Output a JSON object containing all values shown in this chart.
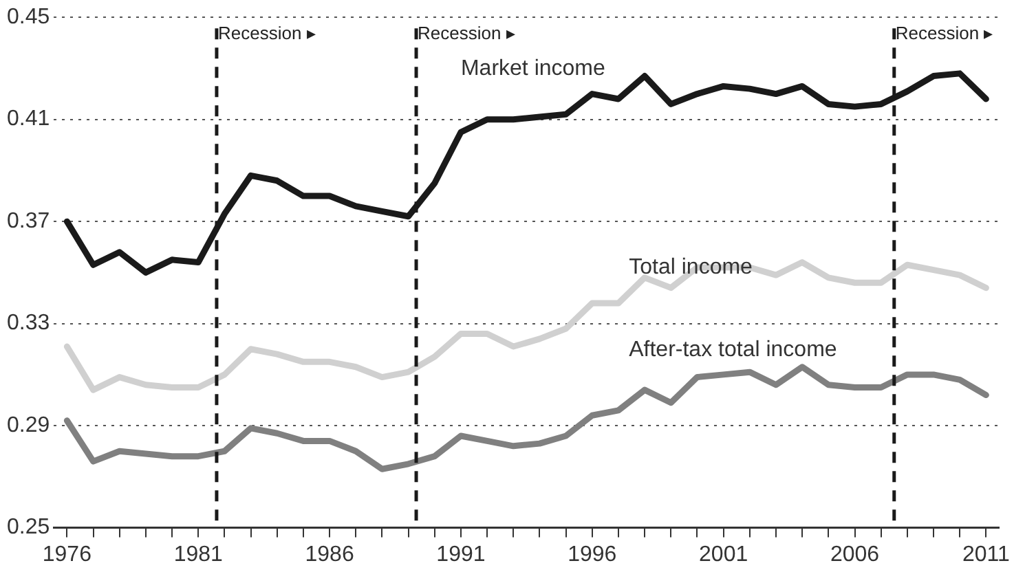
{
  "chart_data": {
    "type": "line",
    "x": [
      1976,
      1977,
      1978,
      1979,
      1980,
      1981,
      1982,
      1983,
      1984,
      1985,
      1986,
      1987,
      1988,
      1989,
      1990,
      1991,
      1992,
      1993,
      1994,
      1995,
      1996,
      1997,
      1998,
      1999,
      2000,
      2001,
      2002,
      2003,
      2004,
      2005,
      2006,
      2007,
      2008,
      2009,
      2010,
      2011
    ],
    "series": [
      {
        "name": "Market income",
        "color": "#1a1a1a",
        "values": [
          0.37,
          0.353,
          0.358,
          0.35,
          0.355,
          0.354,
          0.373,
          0.388,
          0.386,
          0.38,
          0.38,
          0.376,
          0.374,
          0.372,
          0.385,
          0.405,
          0.41,
          0.41,
          0.411,
          0.412,
          0.42,
          0.418,
          0.427,
          0.416,
          0.42,
          0.423,
          0.422,
          0.42,
          0.423,
          0.416,
          0.415,
          0.416,
          0.421,
          0.427,
          0.428,
          0.418
        ]
      },
      {
        "name": "Total income",
        "color": "#d0d0d0",
        "values": [
          0.321,
          0.304,
          0.309,
          0.306,
          0.305,
          0.305,
          0.31,
          0.32,
          0.318,
          0.315,
          0.315,
          0.313,
          0.309,
          0.311,
          0.317,
          0.326,
          0.326,
          0.321,
          0.324,
          0.328,
          0.338,
          0.338,
          0.348,
          0.344,
          0.352,
          0.352,
          0.352,
          0.349,
          0.354,
          0.348,
          0.346,
          0.346,
          0.353,
          0.351,
          0.349,
          0.344
        ]
      },
      {
        "name": "After-tax total income",
        "color": "#808080",
        "values": [
          0.292,
          0.276,
          0.28,
          0.279,
          0.278,
          0.278,
          0.28,
          0.289,
          0.287,
          0.284,
          0.284,
          0.28,
          0.273,
          0.275,
          0.278,
          0.286,
          0.284,
          0.282,
          0.283,
          0.286,
          0.294,
          0.296,
          0.304,
          0.299,
          0.309,
          0.31,
          0.311,
          0.306,
          0.313,
          0.306,
          0.305,
          0.305,
          0.31,
          0.31,
          0.308,
          0.302
        ]
      }
    ],
    "xlim": [
      1975.5,
      2011.5
    ],
    "xticks": [
      1976,
      {
        "value": 1977,
        "label": null
      },
      {
        "value": 1978,
        "label": null
      },
      {
        "value": 1979,
        "label": null
      },
      {
        "value": 1980,
        "label": null
      },
      1981,
      {
        "value": 1982,
        "label": null
      },
      {
        "value": 1983,
        "label": null
      },
      {
        "value": 1984,
        "label": null
      },
      {
        "value": 1985,
        "label": null
      },
      1986,
      {
        "value": 1987,
        "label": null
      },
      {
        "value": 1988,
        "label": null
      },
      {
        "value": 1989,
        "label": null
      },
      {
        "value": 1990,
        "label": null
      },
      1991,
      {
        "value": 1992,
        "label": null
      },
      {
        "value": 1993,
        "label": null
      },
      {
        "value": 1994,
        "label": null
      },
      {
        "value": 1995,
        "label": null
      },
      1996,
      {
        "value": 1997,
        "label": null
      },
      {
        "value": 1998,
        "label": null
      },
      {
        "value": 1999,
        "label": null
      },
      {
        "value": 2000,
        "label": null
      },
      2001,
      {
        "value": 2002,
        "label": null
      },
      {
        "value": 2003,
        "label": null
      },
      {
        "value": 2004,
        "label": null
      },
      {
        "value": 2005,
        "label": null
      },
      2006,
      {
        "value": 2007,
        "label": null
      },
      {
        "value": 2008,
        "label": null
      },
      {
        "value": 2009,
        "label": null
      },
      {
        "value": 2010,
        "label": null
      },
      2011
    ],
    "ylim": [
      0.25,
      0.45
    ],
    "yticks": [
      0.25,
      0.29,
      0.33,
      0.37,
      0.41,
      0.45
    ],
    "grid": "y",
    "legend": false,
    "marker": "none",
    "line_style": "solid",
    "ref_lines": [
      {
        "axis": "x",
        "value": 1981.7,
        "label": "Recession ▸",
        "line_style": "dashed",
        "color": "#1a1a1a"
      },
      {
        "axis": "x",
        "value": 1989.3,
        "label": "Recession ▸",
        "line_style": "dashed",
        "color": "#1a1a1a"
      },
      {
        "axis": "x",
        "value": 2007.5,
        "label": "Recession ▸",
        "line_style": "dashed",
        "color": "#1a1a1a"
      }
    ]
  }
}
